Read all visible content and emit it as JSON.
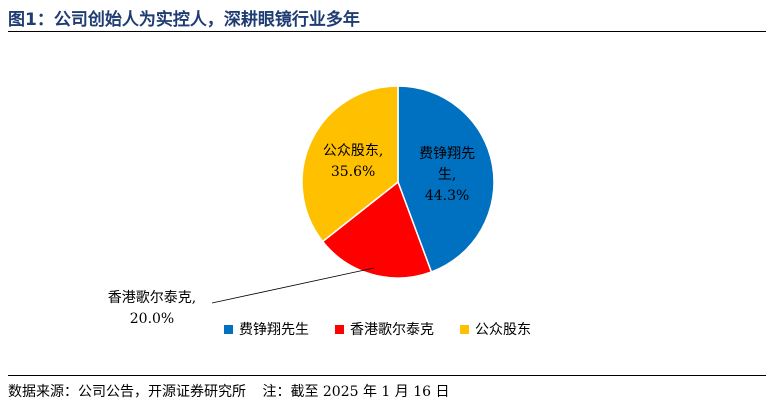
{
  "header": {
    "title": "图1：公司创始人为实控人，深耕眼镜行业多年"
  },
  "footer": {
    "source": "数据来源：公司公告，开源证券研究所",
    "note": "注：截至 2025 年 1 月 16 日"
  },
  "chart_data": {
    "type": "pie",
    "title": "",
    "slices": [
      {
        "name": "费铮翔先生",
        "value": 44.3,
        "value_label": "44.3%",
        "label_lines": [
          "费铮翔先",
          "生,"
        ],
        "color": "#0070c0"
      },
      {
        "name": "香港歌尔泰克",
        "value": 20.0,
        "value_label": "20.0%",
        "label_lines": [
          "香港歌尔泰克,"
        ],
        "color": "#ff0000"
      },
      {
        "name": "公众股东",
        "value": 35.6,
        "value_label": "35.6%",
        "label_lines": [
          "公众股东,"
        ],
        "color": "#ffc000"
      }
    ],
    "legend_position": "bottom"
  }
}
